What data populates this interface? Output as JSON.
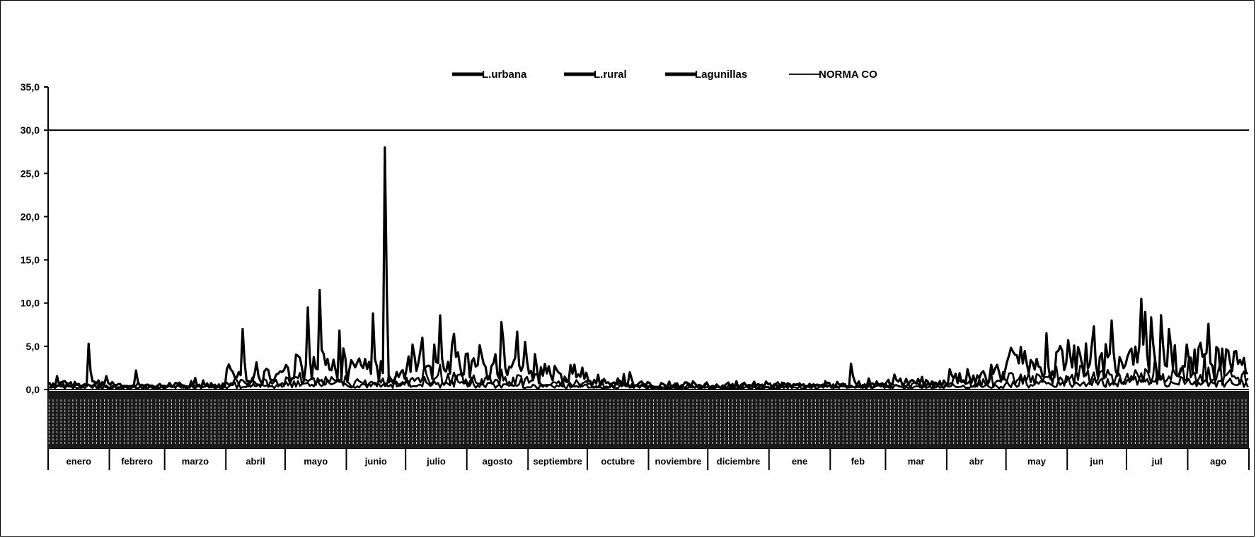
{
  "chart_data": {
    "type": "line",
    "title": "",
    "xlabel": "",
    "ylabel": "",
    "ylim": [
      0,
      35
    ],
    "yticks": [
      "0,0",
      "5,0",
      "10,0",
      "15,0",
      "20,0",
      "25,0",
      "30,0",
      "35,0"
    ],
    "grid": false,
    "legend_position": "top-center",
    "categories": [
      "enero",
      "febrero",
      "marzo",
      "abril",
      "mayo",
      "junio",
      "julio",
      "agosto",
      "septiembre",
      "octubre",
      "noviembre",
      "diciembre",
      "ene",
      "feb",
      "mar",
      "abr",
      "may",
      "jun",
      "jul",
      "ago"
    ],
    "days_per_category": [
      31,
      28,
      31,
      30,
      31,
      30,
      31,
      31,
      30,
      31,
      30,
      31,
      31,
      28,
      31,
      30,
      31,
      30,
      31,
      31
    ],
    "series": [
      {
        "name": "L.urbana",
        "color": "#000000",
        "values_monthly_mean": [
          0.6,
          0.4,
          0.5,
          1.5,
          2.5,
          2.2,
          3.3,
          2.5,
          1.8,
          0.8,
          0.5,
          0.4,
          0.5,
          0.6,
          0.8,
          1.5,
          3.0,
          3.5,
          3.3,
          3.0
        ],
        "peaks": [
          {
            "category": "enero",
            "value": 5.3
          },
          {
            "category": "febrero",
            "value": 2.2
          },
          {
            "category": "abril",
            "value": 7.0
          },
          {
            "category": "mayo",
            "value": 11.5
          },
          {
            "category": "mayo",
            "value": 9.5
          },
          {
            "category": "junio",
            "value": 28.0
          },
          {
            "category": "junio",
            "value": 8.8
          },
          {
            "category": "julio",
            "value": 6.0
          },
          {
            "category": "agosto",
            "value": 7.8
          },
          {
            "category": "feb",
            "value": 3.0
          },
          {
            "category": "may",
            "value": 6.5
          },
          {
            "category": "jun",
            "value": 7.3
          },
          {
            "category": "jul",
            "value": 10.5
          },
          {
            "category": "jul",
            "value": 8.6
          },
          {
            "category": "ago",
            "value": 7.6
          }
        ]
      },
      {
        "name": "L.rural",
        "color": "#000000",
        "values_monthly_mean": [
          0.4,
          0.3,
          0.4,
          0.8,
          1.0,
          0.8,
          1.2,
          1.0,
          0.8,
          0.5,
          0.3,
          0.3,
          0.4,
          0.4,
          0.5,
          0.8,
          1.2,
          1.5,
          1.6,
          1.5
        ]
      },
      {
        "name": "Lagunillas",
        "color": "#000000",
        "values_monthly_mean": [
          0.3,
          0.2,
          0.3,
          0.4,
          0.6,
          0.5,
          0.6,
          0.5,
          0.4,
          0.3,
          0.2,
          0.2,
          0.3,
          0.3,
          0.3,
          0.4,
          0.6,
          0.8,
          0.9,
          0.8
        ]
      },
      {
        "name": "NORMA CO",
        "color": "#000000",
        "constant": 30.0
      }
    ]
  }
}
